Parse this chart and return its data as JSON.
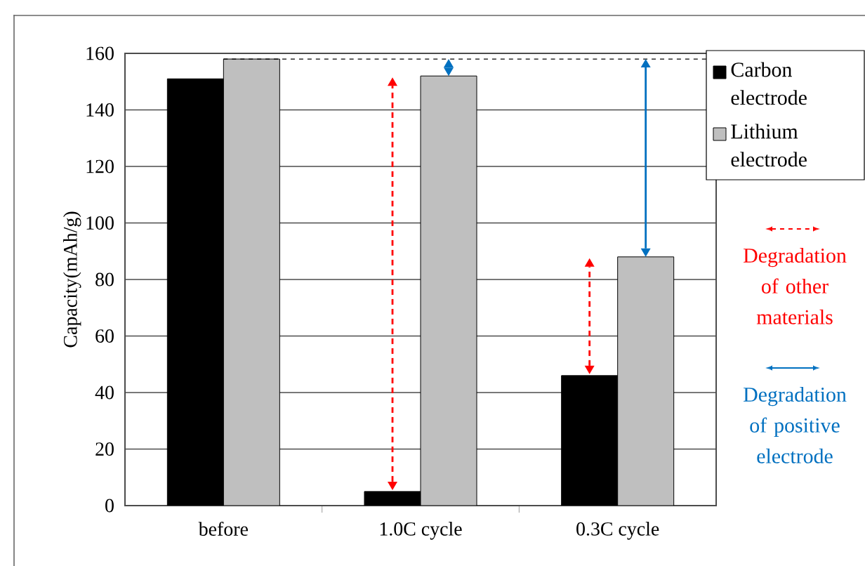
{
  "chart_data": {
    "type": "bar",
    "ylabel": "Capacity(mAh/g)",
    "categories": [
      "before",
      "1.0C cycle",
      "0.3C cycle"
    ],
    "series": [
      {
        "name": "Carbon electrode",
        "color": "#000000",
        "values": [
          151,
          5,
          46
        ]
      },
      {
        "name": "Lithium electrode",
        "color": "#bfbfbf",
        "values": [
          158,
          152,
          88
        ]
      }
    ],
    "ylim": [
      0,
      160
    ],
    "yticks": [
      0,
      20,
      40,
      60,
      80,
      100,
      120,
      140,
      160
    ],
    "grid": "y",
    "legend": "top right",
    "ref_lines": [
      {
        "axis": "y",
        "value": 158,
        "color": "#000000",
        "line_style": "dashed"
      }
    ],
    "annotations": [
      "Degradation of other materials",
      "Degradation of positive electrode"
    ]
  }
}
